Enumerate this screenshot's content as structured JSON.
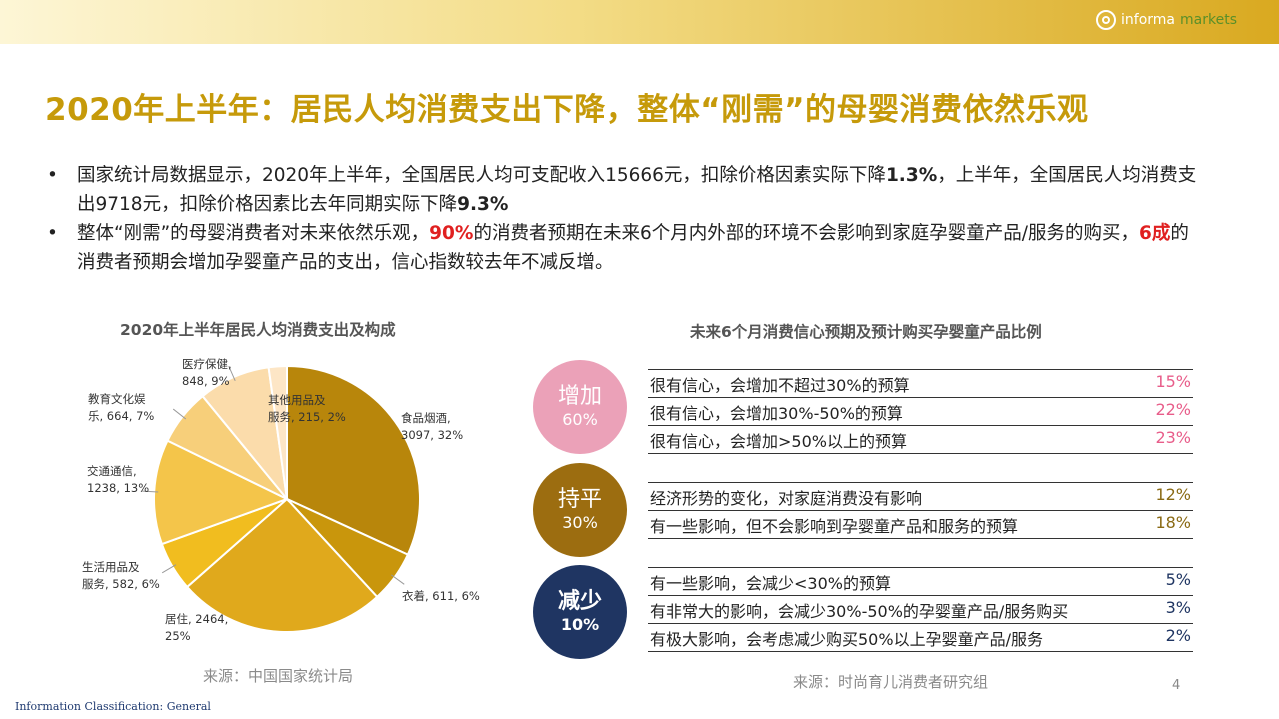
{
  "header": {
    "logo_text_a": "informa",
    "logo_text_b": "markets"
  },
  "title": "2020年上半年：居民人均消费支出下降，整体“刚需”的母婴消费依然乐观",
  "bullets": {
    "b1": {
      "t1": "国家统计局数据显示，2020年上半年，全国居民人均可支配收入15666元，扣除价格因素实际下降",
      "v1": "1.3%",
      "t2": "，上半年，全国居民人均消费支出9718元，扣除价格因素比去年同期实际下降",
      "v2": "9.3%"
    },
    "b2": {
      "t1": "整体“刚需”的母婴消费者对未来依然乐观，",
      "v1": "90%",
      "t2": "的消费者预期在未来6个月内外部的环境不会影响到家庭孕婴童产品/服务的购买，",
      "v2": "6成",
      "t3": "的消费者预期会增加孕婴童产品的支出，信心指数较去年不减反增。"
    }
  },
  "left": {
    "source": "来源：中国国家统计局"
  },
  "chart_data": [
    {
      "type": "pie",
      "title": "2020年上半年居民人均消费支出及构成",
      "slices": [
        {
          "name": "食品烟酒",
          "value": 3097,
          "pct": "32%",
          "color": "#b8860b",
          "label": [
            "食品烟酒,",
            "3097, 32%"
          ]
        },
        {
          "name": "衣着",
          "value": 611,
          "pct": "6%",
          "color": "#c9960c",
          "label": [
            "衣着, 611, 6%"
          ]
        },
        {
          "name": "居住",
          "value": 2464,
          "pct": "25%",
          "color": "#e0a91c",
          "label": [
            "居住, 2464,",
            "25%"
          ]
        },
        {
          "name": "生活用品及服务",
          "value": 582,
          "pct": "6%",
          "color": "#f1bd1f",
          "label": [
            "生活用品及",
            "服务, 582, 6%"
          ]
        },
        {
          "name": "交通通信",
          "value": 1238,
          "pct": "13%",
          "color": "#f4c54a",
          "label": [
            "交通通信,",
            "1238, 13%"
          ]
        },
        {
          "name": "教育文化娱乐",
          "value": 664,
          "pct": "7%",
          "color": "#f7cf7a",
          "label": [
            "教育文化娱",
            "乐, 664, 7%"
          ]
        },
        {
          "name": "医疗保健",
          "value": 848,
          "pct": "9%",
          "color": "#fbdcab",
          "label": [
            "医疗保健,",
            "848, 9%"
          ]
        },
        {
          "name": "其他用品及服务",
          "value": 215,
          "pct": "2%",
          "color": "#fde6c6",
          "label": [
            "其他用品及",
            "服务, 215, 2%"
          ]
        }
      ]
    },
    {
      "type": "table",
      "title": "未来6个月消费信心预期及预计购买孕婴童产品比例",
      "groups": [
        {
          "name": "增加",
          "pct": "60%",
          "color": "#eba1b8",
          "rows": [
            {
              "label": "很有信心，会增加不超过30%的预算",
              "value": "15%"
            },
            {
              "label": "很有信心，会增加30%-50%的预算",
              "value": "22%"
            },
            {
              "label": "很有信心，会增加>50%以上的预算",
              "value": "23%"
            }
          ]
        },
        {
          "name": "持平",
          "pct": "30%",
          "color": "#9c6d10",
          "rows": [
            {
              "label": "经济形势的变化，对家庭消费没有影响",
              "value": "12%"
            },
            {
              "label": "有一些影响，但不会影响到孕婴童产品和服务的预算",
              "value": "18%"
            }
          ]
        },
        {
          "name": "减少",
          "pct": "10%",
          "color": "#1f3562",
          "rows": [
            {
              "label": "有一些影响，会减少<30%的预算",
              "value": "5%"
            },
            {
              "label": "有非常大的影响，会减少30%-50%的孕婴童产品/服务购买",
              "value": "3%"
            },
            {
              "label": "有极大影响，会考虑减少购买50%以上孕婴童产品/服务",
              "value": "2%"
            }
          ]
        }
      ]
    }
  ],
  "right": {
    "source": "来源：时尚育儿消费者研究组",
    "pct_colors": {
      "增加": "#e85d8a",
      "持平": "#8a6a14",
      "减少": "#1f3562"
    }
  },
  "footer": "Information Classification: General",
  "page_number": "4"
}
